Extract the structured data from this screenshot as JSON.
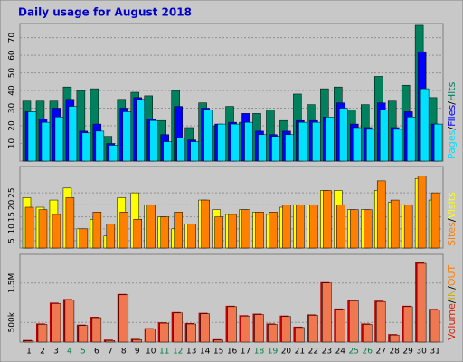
{
  "chart_data": [
    {
      "type": "bar",
      "title": "Daily usage for August 2018",
      "title_color": "#0000cc",
      "legend_separator": "/",
      "ylim": [
        0,
        78
      ],
      "yticks": [
        10,
        20,
        30,
        40,
        50,
        60,
        70
      ],
      "grid": true,
      "series": [
        {
          "name": "Hits",
          "color": "#00805c",
          "values": [
            34,
            34,
            34,
            42,
            40,
            41,
            14,
            35,
            39,
            37,
            23,
            40,
            19,
            33,
            20,
            31,
            22,
            27,
            29,
            23,
            38,
            32,
            41,
            42,
            29,
            32,
            48,
            34,
            43,
            77,
            36
          ]
        },
        {
          "name": "Files",
          "color": "#0000ff",
          "values": [
            28,
            24,
            30,
            35,
            17,
            21,
            10,
            30,
            36,
            24,
            15,
            31,
            12,
            30,
            21,
            22,
            27,
            17,
            15,
            17,
            23,
            23,
            25,
            33,
            21,
            19,
            33,
            19,
            28,
            62,
            21
          ]
        },
        {
          "name": "Pages",
          "color": "#00e0ff",
          "values": [
            28,
            22,
            25,
            31,
            16,
            17,
            9,
            28,
            35,
            23,
            11,
            13,
            11,
            29,
            21,
            21,
            22,
            15,
            14,
            15,
            22,
            22,
            25,
            30,
            19,
            18,
            29,
            18,
            25,
            41,
            21
          ]
        }
      ]
    },
    {
      "type": "bar",
      "legend_separator": "/",
      "ylim": [
        2,
        36
      ],
      "yticks": [
        5,
        10,
        15,
        20,
        25
      ],
      "grid": true,
      "series": [
        {
          "name": "Visits",
          "color": "#ffff00",
          "values": [
            23,
            19,
            22,
            27,
            10,
            14,
            7,
            23,
            25,
            20,
            15,
            10,
            12,
            22,
            18,
            16,
            18,
            17,
            16,
            19,
            20,
            20,
            26,
            26,
            18,
            18,
            26,
            21,
            20,
            31,
            22
          ]
        },
        {
          "name": "Sites",
          "color": "#ff8000",
          "values": [
            19,
            18,
            16,
            23,
            10,
            17,
            12,
            17,
            14,
            20,
            15,
            17,
            12,
            22,
            15,
            16,
            18,
            17,
            17,
            20,
            20,
            20,
            26,
            20,
            18,
            18,
            30,
            22,
            20,
            32,
            25
          ]
        }
      ]
    },
    {
      "type": "bar",
      "legend_separator": "/",
      "ylim": [
        0,
        2230000
      ],
      "yticks": [
        {
          "value": 500000,
          "label": "500k"
        },
        {
          "value": 1500000,
          "label": "1.5M"
        }
      ],
      "grid": true,
      "categories": [
        "1",
        "2",
        "3",
        "4",
        "5",
        "6",
        "7",
        "8",
        "9",
        "10",
        "11",
        "12",
        "13",
        "14",
        "15",
        "16",
        "17",
        "18",
        "19",
        "20",
        "21",
        "22",
        "23",
        "24",
        "25",
        "26",
        "27",
        "28",
        "29",
        "30",
        "31"
      ],
      "category_colors": [
        "#000",
        "#000",
        "#000",
        "#008040",
        "#008040",
        "#000",
        "#000",
        "#000",
        "#000",
        "#000",
        "#008040",
        "#008040",
        "#000",
        "#000",
        "#000",
        "#000",
        "#000",
        "#008040",
        "#008040",
        "#000",
        "#000",
        "#000",
        "#000",
        "#000",
        "#008040",
        "#008040",
        "#000",
        "#000",
        "#000",
        "#000",
        "#000"
      ],
      "series": [
        {
          "name": "Volume",
          "color": "#e02000",
          "values": [
            30000,
            450000,
            980000,
            1070000,
            420000,
            620000,
            40000,
            1200000,
            60000,
            330000,
            480000,
            740000,
            460000,
            720000,
            50000,
            900000,
            660000,
            700000,
            450000,
            650000,
            370000,
            680000,
            1500000,
            830000,
            1050000,
            450000,
            1030000,
            180000,
            900000,
            2000000,
            820000
          ]
        }
      ],
      "legend_extra": [
        {
          "text": "IN",
          "color": "#c8b000"
        },
        {
          "text": "OUT",
          "color": "#ff8000"
        }
      ]
    }
  ]
}
